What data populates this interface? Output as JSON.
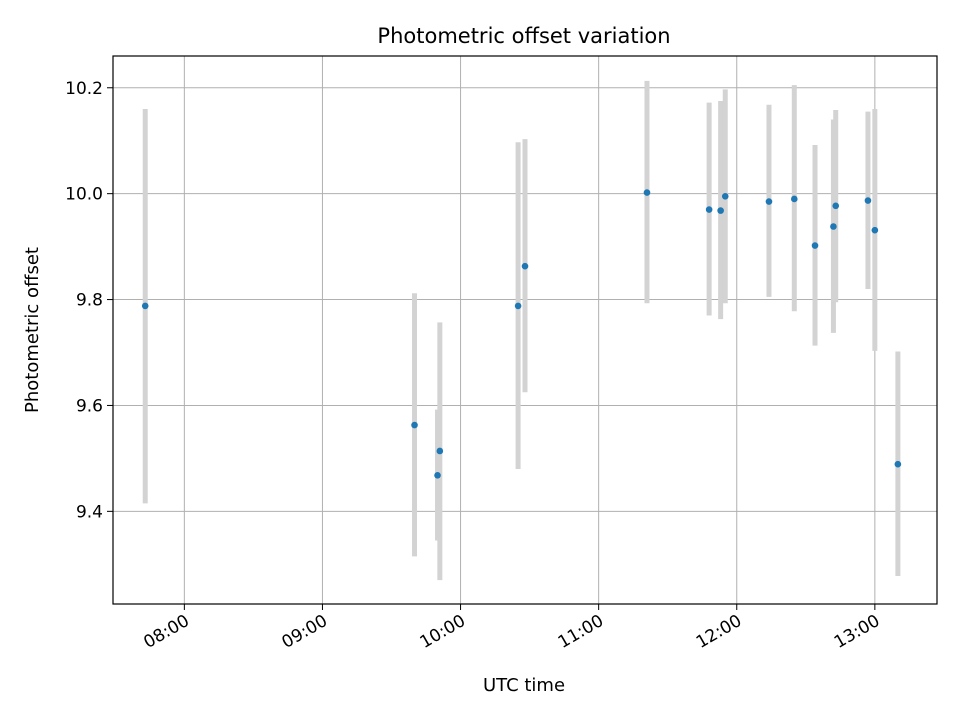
{
  "chart_data": {
    "type": "scatter",
    "title": "Photometric offset variation",
    "xlabel": "UTC time",
    "ylabel": "Photometric offset",
    "x_ticks": [
      "08:00",
      "09:00",
      "10:00",
      "11:00",
      "12:00",
      "13:00"
    ],
    "y_ticks": [
      "9.4",
      "9.6",
      "9.8",
      "10.0",
      "10.2"
    ],
    "xlim": [
      "07:29",
      "13:27"
    ],
    "ylim": [
      9.225,
      10.26
    ],
    "grid": true,
    "colors": {
      "point": "#1f77b4",
      "errorbar": "#d3d3d3",
      "grid": "#b0b0b0"
    },
    "points": [
      {
        "x": "07:43",
        "y": 9.788,
        "yerr_low": 9.415,
        "yerr_high": 10.16
      },
      {
        "x": "09:40",
        "y": 9.563,
        "yerr_low": 9.315,
        "yerr_high": 9.812
      },
      {
        "x": "09:50",
        "y": 9.468,
        "yerr_low": 9.345,
        "yerr_high": 9.592
      },
      {
        "x": "09:51",
        "y": 9.514,
        "yerr_low": 9.27,
        "yerr_high": 9.757
      },
      {
        "x": "10:25",
        "y": 9.788,
        "yerr_low": 9.48,
        "yerr_high": 10.097
      },
      {
        "x": "10:28",
        "y": 9.863,
        "yerr_low": 9.625,
        "yerr_high": 10.103
      },
      {
        "x": "11:21",
        "y": 10.002,
        "yerr_low": 9.793,
        "yerr_high": 10.213
      },
      {
        "x": "11:48",
        "y": 9.97,
        "yerr_low": 9.77,
        "yerr_high": 10.172
      },
      {
        "x": "11:53",
        "y": 9.968,
        "yerr_low": 9.763,
        "yerr_high": 10.175
      },
      {
        "x": "11:55",
        "y": 9.995,
        "yerr_low": 9.793,
        "yerr_high": 10.197
      },
      {
        "x": "12:14",
        "y": 9.985,
        "yerr_low": 9.805,
        "yerr_high": 10.168
      },
      {
        "x": "12:25",
        "y": 9.99,
        "yerr_low": 9.778,
        "yerr_high": 10.205
      },
      {
        "x": "12:34",
        "y": 9.902,
        "yerr_low": 9.713,
        "yerr_high": 10.092
      },
      {
        "x": "12:42",
        "y": 9.938,
        "yerr_low": 9.737,
        "yerr_high": 10.14
      },
      {
        "x": "12:43",
        "y": 9.977,
        "yerr_low": 9.795,
        "yerr_high": 10.158
      },
      {
        "x": "12:57",
        "y": 9.987,
        "yerr_low": 9.82,
        "yerr_high": 10.155
      },
      {
        "x": "13:00",
        "y": 9.931,
        "yerr_low": 9.703,
        "yerr_high": 10.16
      },
      {
        "x": "13:10",
        "y": 9.489,
        "yerr_low": 9.278,
        "yerr_high": 9.702
      }
    ]
  }
}
